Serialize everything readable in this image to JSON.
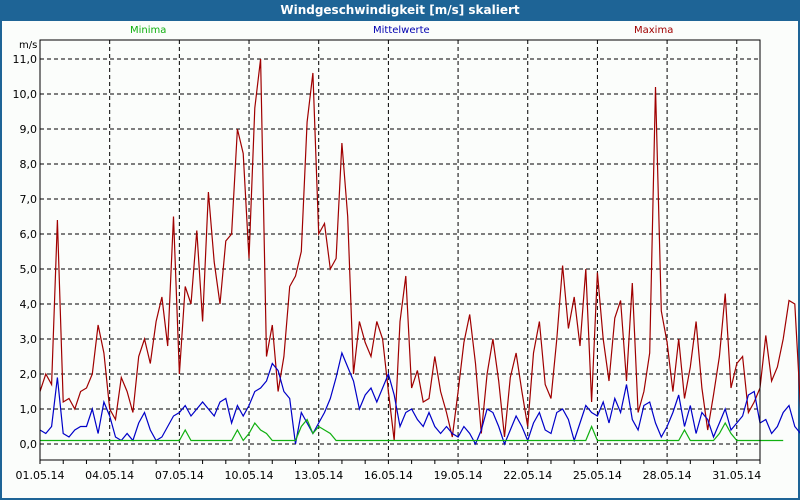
{
  "title": "Windgeschwindigkeit [m/s] skaliert",
  "legend": {
    "min_label": "Minima",
    "mid_label": "Mittelwerte",
    "max_label": "Maxima"
  },
  "colors": {
    "titlebar": "#1e6496",
    "minima": "#10b010",
    "mittelwerte": "#0000c8",
    "maxima": "#a00000",
    "grid": "#000000"
  },
  "chart_data": {
    "type": "line",
    "title": "Windgeschwindigkeit [m/s] skaliert",
    "xlabel": "",
    "ylabel": "m/s",
    "ylim": [
      -0.45,
      11.55
    ],
    "yticks": [
      "0,0",
      "1,0",
      "2,0",
      "3,0",
      "4,0",
      "5,0",
      "6,0",
      "7,0",
      "8,0",
      "9,0",
      "10,0",
      "11,0"
    ],
    "xticks": [
      "01.05.14",
      "04.05.14",
      "07.05.14",
      "10.05.14",
      "13.05.14",
      "16.05.14",
      "19.05.14",
      "22.05.14",
      "25.05.14",
      "28.05.14",
      "31.05.14"
    ],
    "x_range_days": [
      0,
      31
    ],
    "samples_per_day": 4,
    "grid": true,
    "legend_position": "top",
    "series": [
      {
        "name": "Minima",
        "values": [
          0.1,
          0.1,
          0.1,
          0.1,
          0.1,
          0.1,
          0.1,
          0.1,
          0.1,
          0.1,
          0.1,
          0.1,
          0.1,
          0.1,
          0.1,
          0.1,
          0.1,
          0.1,
          0.1,
          0.1,
          0.1,
          0.1,
          0.1,
          0.1,
          0.1,
          0.4,
          0.1,
          0.1,
          0.1,
          0.1,
          0.1,
          0.1,
          0.1,
          0.1,
          0.4,
          0.1,
          0.3,
          0.6,
          0.4,
          0.3,
          0.1,
          0.1,
          0.1,
          0.1,
          0.1,
          0.5,
          0.7,
          0.3,
          0.5,
          0.4,
          0.3,
          0.1,
          0.1,
          0.1,
          0.1,
          0.1,
          0.1,
          0.1,
          0.1,
          0.1,
          0.1,
          0.1,
          0.1,
          0.1,
          0.1,
          0.1,
          0.1,
          0.1,
          0.1,
          0.1,
          0.1,
          0.1,
          0.1,
          0.1,
          0.1,
          0.1,
          0.1,
          0.1,
          0.1,
          0.1,
          0.1,
          0.1,
          0.1,
          0.1,
          0.1,
          0.1,
          0.1,
          0.1,
          0.1,
          0.1,
          0.1,
          0.1,
          0.1,
          0.1,
          0.1,
          0.5,
          0.1,
          0.1,
          0.1,
          0.1,
          0.1,
          0.1,
          0.1,
          0.1,
          0.1,
          0.1,
          0.1,
          0.1,
          0.1,
          0.1,
          0.1,
          0.4,
          0.1,
          0.1,
          0.1,
          0.1,
          0.1,
          0.3,
          0.6,
          0.3,
          0.1,
          0.1,
          0.1,
          0.1,
          0.1,
          0.1,
          0.1,
          0.1,
          0.1
        ]
      },
      {
        "name": "Mittelwerte",
        "values": [
          0.4,
          0.3,
          0.5,
          1.9,
          0.3,
          0.2,
          0.4,
          0.5,
          0.5,
          1.0,
          0.3,
          1.2,
          0.8,
          0.2,
          0.1,
          0.3,
          0.1,
          0.6,
          0.9,
          0.4,
          0.1,
          0.2,
          0.5,
          0.8,
          0.9,
          1.1,
          0.8,
          1.0,
          1.2,
          1.0,
          0.8,
          1.2,
          1.3,
          0.6,
          1.1,
          0.8,
          1.1,
          1.5,
          1.6,
          1.8,
          2.3,
          2.1,
          1.5,
          1.3,
          0.0,
          0.9,
          0.6,
          0.3,
          0.6,
          0.9,
          1.3,
          1.9,
          2.6,
          2.2,
          1.8,
          1.0,
          1.4,
          1.6,
          1.2,
          1.6,
          2.0,
          1.4,
          0.5,
          0.9,
          1.0,
          0.7,
          0.5,
          0.9,
          0.5,
          0.3,
          0.5,
          0.3,
          0.2,
          0.5,
          0.3,
          0.0,
          0.4,
          1.0,
          0.9,
          0.5,
          0.0,
          0.4,
          0.8,
          0.5,
          0.1,
          0.6,
          0.9,
          0.4,
          0.3,
          0.9,
          1.0,
          0.7,
          0.1,
          0.6,
          1.1,
          0.9,
          0.8,
          1.2,
          0.6,
          1.3,
          0.9,
          1.7,
          0.7,
          0.4,
          1.1,
          1.2,
          0.6,
          0.2,
          0.5,
          0.9,
          1.4,
          0.5,
          1.1,
          0.3,
          0.9,
          0.7,
          0.2,
          0.6,
          1.0,
          0.4,
          0.6,
          0.8,
          1.4,
          1.5,
          0.6,
          0.7,
          0.3,
          0.5,
          0.9,
          1.1,
          0.5,
          0.3,
          0.5,
          0.7,
          1.1,
          0.8,
          0.4,
          0.1,
          0.7,
          0.2,
          0.3
        ]
      },
      {
        "name": "Maxima",
        "values": [
          1.5,
          2.0,
          1.7,
          6.4,
          1.2,
          1.3,
          1.0,
          1.5,
          1.6,
          2.0,
          3.4,
          2.6,
          1.0,
          0.7,
          1.9,
          1.5,
          0.9,
          2.5,
          3.0,
          2.3,
          3.5,
          4.2,
          2.8,
          6.5,
          2.0,
          4.5,
          4.0,
          6.1,
          3.5,
          7.2,
          5.2,
          4.0,
          5.8,
          6.0,
          9.0,
          8.3,
          5.3,
          9.6,
          11.0,
          2.5,
          3.4,
          1.5,
          2.5,
          4.5,
          4.8,
          5.5,
          9.2,
          10.6,
          6.0,
          6.3,
          5.0,
          5.3,
          8.6,
          6.5,
          2.0,
          3.5,
          2.9,
          2.5,
          3.5,
          3.0,
          1.5,
          0.1,
          3.5,
          4.8,
          1.6,
          2.1,
          1.2,
          1.3,
          2.5,
          1.5,
          0.9,
          0.2,
          1.5,
          2.9,
          3.7,
          2.3,
          0.3,
          2.0,
          3.0,
          1.8,
          0.2,
          1.9,
          2.6,
          1.5,
          0.5,
          2.6,
          3.5,
          1.7,
          1.3,
          3.0,
          5.1,
          3.3,
          4.2,
          2.8,
          5.0,
          1.2,
          4.9,
          3.0,
          1.8,
          3.6,
          4.1,
          1.8,
          4.6,
          0.9,
          1.5,
          2.6,
          10.2,
          3.8,
          2.9,
          1.5,
          3.0,
          1.3,
          2.2,
          3.5,
          1.6,
          0.4,
          1.4,
          2.5,
          4.3,
          1.6,
          2.3,
          2.5,
          0.9,
          1.2,
          1.6,
          3.1,
          1.8,
          2.2,
          3.0,
          4.1,
          4.0,
          1.0,
          2.0,
          3.0,
          2.7,
          1.6,
          2.0,
          4.2,
          2.0,
          1.9,
          1.3,
          2.8,
          2.5,
          1.1,
          2.0,
          1.0,
          1.5
        ]
      }
    ]
  }
}
